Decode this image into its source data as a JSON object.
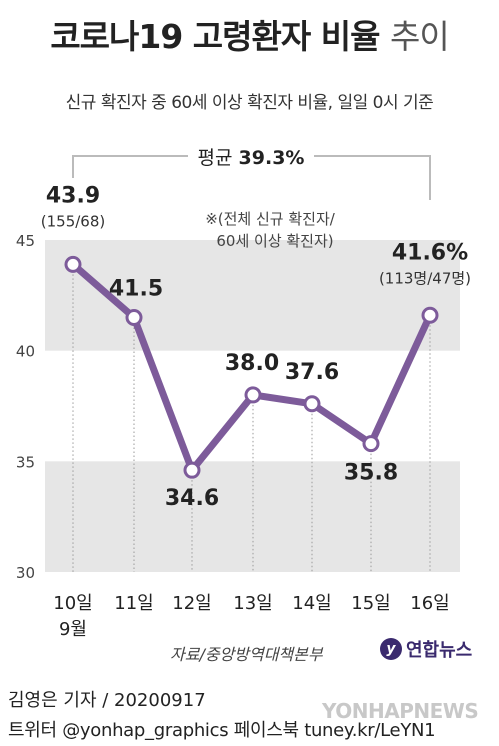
{
  "header": {
    "title_main": "코로나19 고령환자 비율",
    "title_light": "추이",
    "subtitle": "신규 확진자 중 60세 이상 확진자 비율, 일일 0시 기준"
  },
  "chart_data": {
    "type": "line",
    "categories": [
      "10일\n9월",
      "11일",
      "12일",
      "13일",
      "14일",
      "15일",
      "16일"
    ],
    "values": [
      43.9,
      41.5,
      34.6,
      38.0,
      37.6,
      35.8,
      41.6
    ],
    "value_labels": [
      "43.9",
      "41.5",
      "34.6",
      "38.0",
      "37.6",
      "35.8",
      "41.6%"
    ],
    "sub_labels": {
      "0": "(155/68)",
      "6": "(113명/47명)"
    },
    "ylim": [
      30,
      45
    ],
    "yticks": [
      "30",
      "35",
      "40",
      "45"
    ],
    "average_label": "평균",
    "average_value": "39.3%",
    "note_line1": "※(전체 신규 확진자/",
    "note_line2": "60세 이상 확진자)",
    "line_color": "#7d5b9a",
    "band_color": "#e6e6e6"
  },
  "footer": {
    "source": "자료/중앙방역대책본부",
    "logo_text": "연합뉴스",
    "author": "김영은 기자 / 20200917",
    "social": "트위터 @yonhap_graphics  페이스북 tuney.kr/LeYN1",
    "watermark": "YONHAPNEWS"
  }
}
